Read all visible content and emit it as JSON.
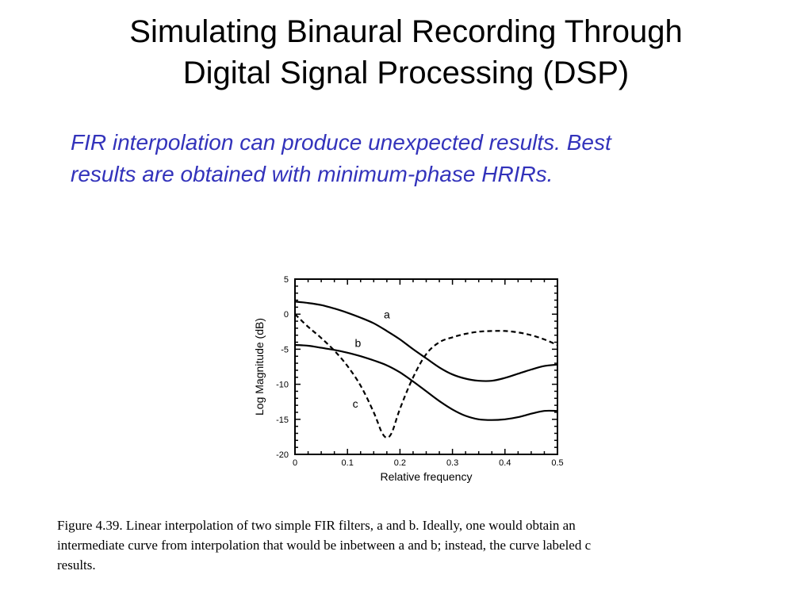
{
  "slide": {
    "title_lines": [
      "Simulating Binaural Recording Through",
      "Digital Signal Processing (DSP)"
    ],
    "subtitle_lines": [
      "FIR interpolation can produce unexpected results.  Best",
      "results are obtained with minimum-phase HRIRs."
    ]
  },
  "caption": {
    "lines": [
      "Figure 4.39.  Linear  interpolation of two simple FIR filters, a and b.  Ideally, one would obtain an",
      "intermediate curve from interpolation that would be inbetween a and b; instead, the curve labeled c",
      "results."
    ]
  },
  "chart_data": {
    "type": "line",
    "title": "",
    "xlabel": "Relative frequency",
    "ylabel": "Log Magnitude (dB)",
    "xlim": [
      0,
      0.5
    ],
    "ylim": [
      -20,
      5
    ],
    "xticks": [
      0,
      0.1,
      0.2,
      0.3,
      0.4,
      0.5
    ],
    "xtick_labels": [
      "0",
      "0.1",
      "0.2",
      "0.3",
      "0.4",
      "0.5"
    ],
    "yticks": [
      5,
      0,
      -5,
      -10,
      -15,
      -20
    ],
    "ytick_labels": [
      "5",
      "0",
      "-5",
      "-10",
      "-15",
      "-20"
    ],
    "grid": false,
    "series": [
      {
        "name": "a",
        "style": "solid",
        "x": [
          0,
          0.025,
          0.05,
          0.075,
          0.1,
          0.125,
          0.15,
          0.175,
          0.2,
          0.225,
          0.25,
          0.275,
          0.3,
          0.325,
          0.35,
          0.375,
          0.4,
          0.425,
          0.45,
          0.475,
          0.5
        ],
        "y": [
          1.8,
          1.6,
          1.3,
          0.8,
          0.2,
          -0.5,
          -1.3,
          -2.4,
          -3.6,
          -5.0,
          -6.3,
          -7.6,
          -8.6,
          -9.2,
          -9.5,
          -9.5,
          -9.1,
          -8.5,
          -7.9,
          -7.4,
          -7.2
        ]
      },
      {
        "name": "b",
        "style": "solid",
        "x": [
          0,
          0.025,
          0.05,
          0.075,
          0.1,
          0.125,
          0.15,
          0.175,
          0.2,
          0.225,
          0.25,
          0.275,
          0.3,
          0.325,
          0.35,
          0.375,
          0.4,
          0.425,
          0.45,
          0.475,
          0.5
        ],
        "y": [
          -4.4,
          -4.5,
          -4.8,
          -5.1,
          -5.5,
          -6.0,
          -6.6,
          -7.3,
          -8.3,
          -9.6,
          -11.0,
          -12.4,
          -13.6,
          -14.5,
          -15.0,
          -15.1,
          -15.0,
          -14.7,
          -14.2,
          -13.8,
          -13.8
        ]
      },
      {
        "name": "c",
        "style": "dashed",
        "x": [
          0,
          0.025,
          0.05,
          0.075,
          0.1,
          0.125,
          0.15,
          0.165,
          0.175,
          0.185,
          0.2,
          0.225,
          0.25,
          0.275,
          0.3,
          0.325,
          0.35,
          0.375,
          0.4,
          0.425,
          0.45,
          0.475,
          0.5
        ],
        "y": [
          0.0,
          -1.8,
          -3.4,
          -5.2,
          -7.4,
          -10.2,
          -14.0,
          -16.8,
          -17.6,
          -16.8,
          -13.5,
          -9.0,
          -5.7,
          -4.0,
          -3.3,
          -2.8,
          -2.5,
          -2.4,
          -2.4,
          -2.6,
          -3.0,
          -3.6,
          -4.4
        ]
      }
    ],
    "annotations": [
      {
        "text": "a",
        "x": 0.175,
        "y": -0.6
      },
      {
        "text": "b",
        "x": 0.12,
        "y": -4.7
      },
      {
        "text": "c",
        "x": 0.115,
        "y": -13.3
      }
    ]
  }
}
